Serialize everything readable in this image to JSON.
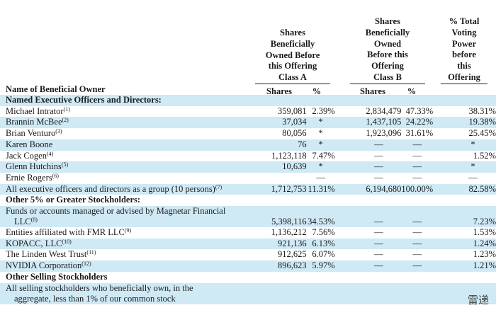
{
  "header": {
    "col_a": [
      "Shares",
      "Beneficially",
      "Owned Before",
      "this Offering",
      "Class A"
    ],
    "col_b": [
      "Shares",
      "Beneficially",
      "Owned",
      "Before this",
      "Offering",
      "Class B"
    ],
    "col_v": [
      "% Total",
      "Voting",
      "Power",
      "before",
      "this",
      "Offering"
    ],
    "name_label": "Name of Beneficial Owner",
    "shares_label": "Shares",
    "pct_label": "%"
  },
  "rows": [
    {
      "type": "section",
      "name": "Named Executive Officers and Directors:"
    },
    {
      "name": "Michael Intrator",
      "fn": "(1)",
      "a_sh": "359,081",
      "a_pct": "2.39%",
      "b_sh": "2,834,479",
      "b_pct": "47.33%",
      "vote": "38.31%"
    },
    {
      "name": "Brannin McBee",
      "fn": "(2)",
      "a_sh": "37,034",
      "a_pct": "*",
      "b_sh": "1,437,105",
      "b_pct": "24.22%",
      "vote": "19.38%"
    },
    {
      "name": "Brian Venturo",
      "fn": "(3)",
      "a_sh": "80,056",
      "a_pct": "*",
      "b_sh": "1,923,096",
      "b_pct": "31.61%",
      "vote": "25.45%"
    },
    {
      "name": "Karen Boone",
      "fn": "",
      "a_sh": "76",
      "a_pct": "*",
      "b_sh": "—",
      "b_pct": "—",
      "vote": "*"
    },
    {
      "name": "Jack Cogen",
      "fn": "(4)",
      "a_sh": "1,123,118",
      "a_pct": "7.47%",
      "b_sh": "—",
      "b_pct": "—",
      "vote": "1.52%"
    },
    {
      "name": "Glenn Hutchins",
      "fn": "(5)",
      "a_sh": "10,639",
      "a_pct": "*",
      "b_sh": "—",
      "b_pct": "—",
      "vote": "*"
    },
    {
      "name": "Ernie Rogers",
      "fn": "(6)",
      "a_sh": "",
      "a_pct": "—",
      "b_sh": "—",
      "b_pct": "—",
      "vote": "—"
    },
    {
      "name": "All executive officers and directors as a group (10 persons)",
      "fn": "(7)",
      "a_sh": "1,712,753",
      "a_pct": "11.31%",
      "b_sh": "6,194,680",
      "b_pct": "100.00%",
      "vote": "82.58%"
    },
    {
      "type": "section",
      "name": "Other 5% or Greater Stockholders:"
    },
    {
      "type": "tall",
      "name": "Funds or accounts managed or advised by Magnetar Financial",
      "name2": "LLC",
      "fn": "(8)",
      "a_sh": "5,398,116",
      "a_pct": "34.53%",
      "b_sh": "—",
      "b_pct": "—",
      "vote": "7.23%"
    },
    {
      "name": "Entities affiliated with FMR LLC",
      "fn": "(9)",
      "a_sh": "1,136,212",
      "a_pct": "7.56%",
      "b_sh": "—",
      "b_pct": "—",
      "vote": "1.53%"
    },
    {
      "name": "KOPACC, LLC",
      "fn": "(10)",
      "a_sh": "921,136",
      "a_pct": "6.13%",
      "b_sh": "—",
      "b_pct": "—",
      "vote": "1.24%"
    },
    {
      "name": "The Linden West Trust",
      "fn": "(11)",
      "a_sh": "912,625",
      "a_pct": "6.07%",
      "b_sh": "—",
      "b_pct": "—",
      "vote": "1.23%"
    },
    {
      "name": "NVIDIA Corporation",
      "fn": "(12)",
      "a_sh": "896,623",
      "a_pct": "5.97%",
      "b_sh": "—",
      "b_pct": "—",
      "vote": "1.21%"
    },
    {
      "type": "section",
      "name": "Other Selling Stockholders"
    },
    {
      "type": "tall",
      "name": "All selling stockholders who beneficially own, in the",
      "name2": "aggregate, less than 1% of our common stock",
      "fn": "",
      "a_sh": "",
      "a_pct": "",
      "b_sh": "",
      "b_pct": "",
      "vote": ""
    }
  ],
  "watermark": "雷递"
}
